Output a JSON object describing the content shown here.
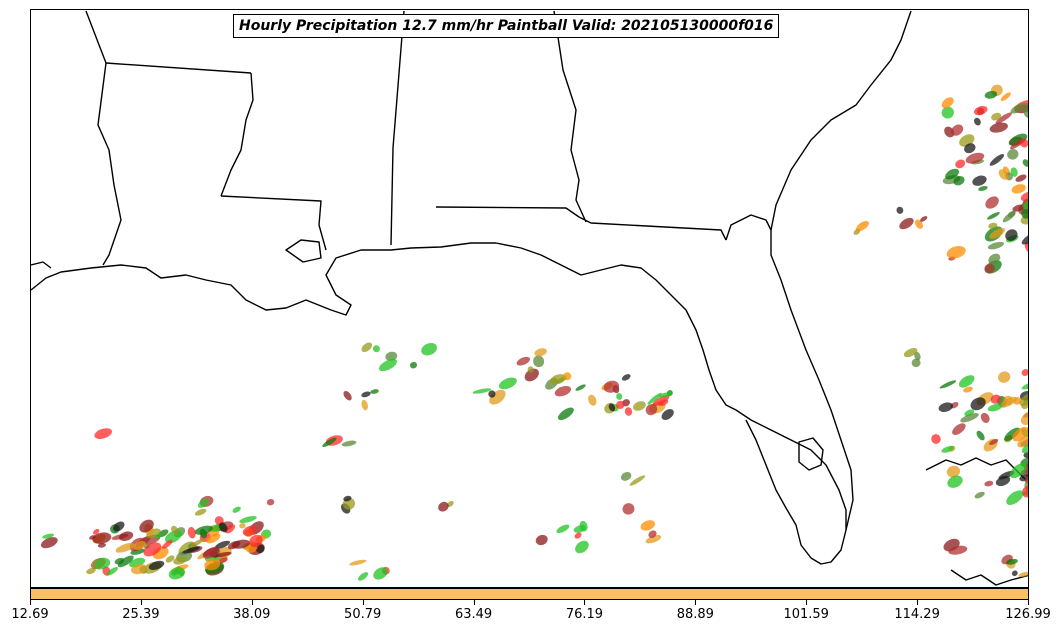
{
  "title": "Hourly Precipitation 12.7 mm/hr Paintball Valid: 202105130000f016",
  "colorbar": {
    "color": "#f9c161",
    "ticks": [
      "12.69",
      "25.39",
      "38.09",
      "50.79",
      "63.49",
      "76.19",
      "88.89",
      "101.59",
      "114.29",
      "126.99"
    ]
  },
  "member_colors": [
    "#ff2a2a",
    "#ff8c00",
    "#8b1a1a",
    "#1a1a1a",
    "#0b7a0b",
    "#9a9a1a",
    "#22c322",
    "#e39a1a",
    "#b03030",
    "#5a8a3a"
  ]
}
